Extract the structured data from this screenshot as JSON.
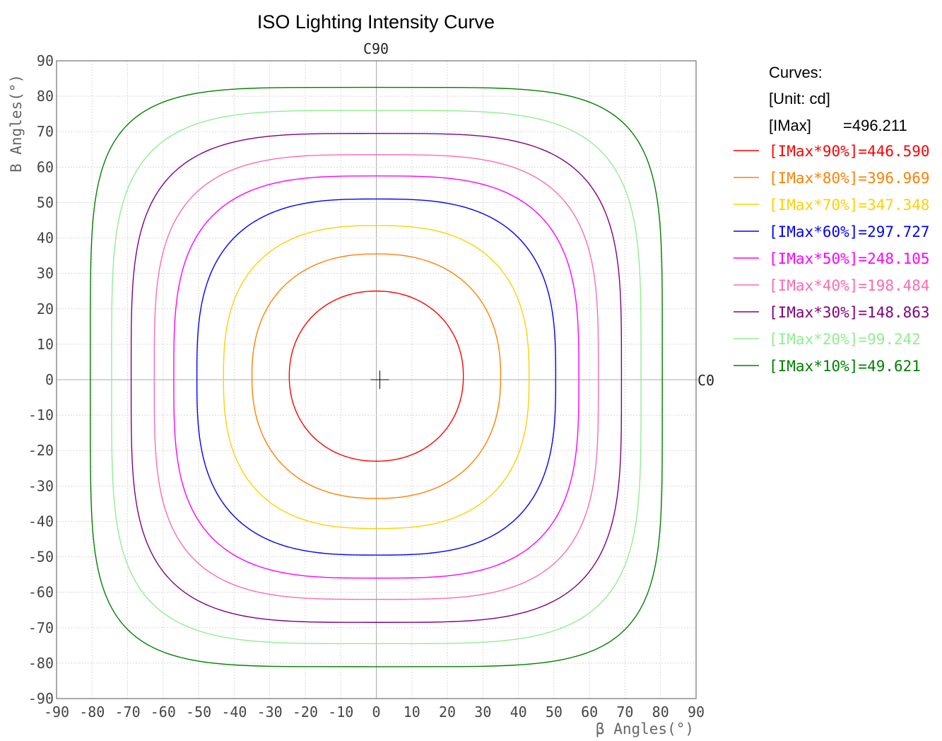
{
  "chart_data": {
    "type": "line",
    "title": "ISO Lighting Intensity Curve",
    "top_label": "C90",
    "right_label": "C0",
    "xlabel": "β Angles(°)",
    "ylabel": "B Angles(°)",
    "xlim": [
      -90,
      90
    ],
    "ylim": [
      -90,
      90
    ],
    "grid": true,
    "x_ticks": [
      "-90",
      "-80",
      "-70",
      "-60",
      "-50",
      "-40",
      "-30",
      "-20",
      "-10",
      "0",
      "10",
      "20",
      "30",
      "40",
      "50",
      "60",
      "70",
      "80",
      "90"
    ],
    "y_ticks": [
      "90",
      "80",
      "70",
      "60",
      "50",
      "40",
      "30",
      "20",
      "10",
      "0",
      "-10",
      "-20",
      "-30",
      "-40",
      "-50",
      "-60",
      "-70",
      "-80",
      "-90"
    ],
    "legend": {
      "heading": "Curves:",
      "unit": "[Unit: cd]",
      "imax_label": "[IMax]",
      "imax_value": "=496.211",
      "placement": "right"
    },
    "series": [
      {
        "name": "[IMax*90%]=446.590",
        "color": "#ff0000",
        "x_min": -24.5,
        "x_max": 24.5,
        "y_min": -23.0,
        "y_max": 25.0,
        "shape_power": 2.1
      },
      {
        "name": "[IMax*80%]=396.969",
        "color": "#ff8000",
        "x_min": -35.0,
        "x_max": 35.0,
        "y_min": -33.5,
        "y_max": 35.5,
        "shape_power": 2.3
      },
      {
        "name": "[IMax*70%]=347.348",
        "color": "#ffd000",
        "x_min": -43.0,
        "x_max": 43.0,
        "y_min": -42.0,
        "y_max": 43.5,
        "shape_power": 2.6
      },
      {
        "name": "[IMax*60%]=297.727",
        "color": "#0000ff",
        "x_min": -50.5,
        "x_max": 50.5,
        "y_min": -49.5,
        "y_max": 51.0,
        "shape_power": 2.9
      },
      {
        "name": "[IMax*50%]=248.105",
        "color": "#ff00ff",
        "x_min": -57.0,
        "x_max": 57.0,
        "y_min": -56.0,
        "y_max": 57.5,
        "shape_power": 3.2
      },
      {
        "name": "[IMax*40%]=198.484",
        "color": "#ff69b4",
        "x_min": -62.5,
        "x_max": 62.5,
        "y_min": -62.0,
        "y_max": 63.5,
        "shape_power": 3.5
      },
      {
        "name": "[IMax*30%]=148.863",
        "color": "#800080",
        "x_min": -69.0,
        "x_max": 69.0,
        "y_min": -68.5,
        "y_max": 69.5,
        "shape_power": 3.8
      },
      {
        "name": "[IMax*20%]=99.242",
        "color": "#90ee90",
        "x_min": -74.5,
        "x_max": 74.5,
        "y_min": -74.5,
        "y_max": 76.0,
        "shape_power": 4.2
      },
      {
        "name": "[IMax*10%]=49.621",
        "color": "#008000",
        "x_min": -80.5,
        "x_max": 80.5,
        "y_min": -81.0,
        "y_max": 82.5,
        "shape_power": 5.0
      }
    ]
  }
}
